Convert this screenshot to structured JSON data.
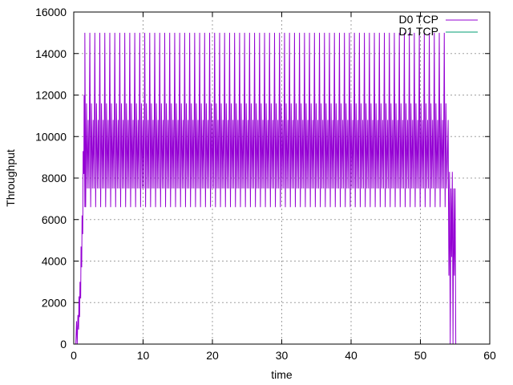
{
  "chart_data": {
    "type": "line",
    "title": "",
    "xlabel": "time",
    "ylabel": "Throughput",
    "xlim": [
      0,
      60
    ],
    "ylim": [
      0,
      16000
    ],
    "x_ticks": [
      "0",
      "10",
      "20",
      "30",
      "40",
      "50",
      "60"
    ],
    "y_ticks": [
      "0",
      "2000",
      "4000",
      "6000",
      "8000",
      "10000",
      "12000",
      "14000",
      "16000"
    ],
    "grid": true,
    "legend_position": "top-right",
    "series": [
      {
        "name": "D0 TCP",
        "color": "#9400d3",
        "style": "oscillating",
        "ramp_up": [
          {
            "x": 0.3,
            "y": 0
          },
          {
            "x": 0.4,
            "y": 1100
          },
          {
            "x": 0.5,
            "y": 0
          },
          {
            "x": 0.6,
            "y": 1400
          },
          {
            "x": 0.7,
            "y": 700
          },
          {
            "x": 0.75,
            "y": 2300
          },
          {
            "x": 0.85,
            "y": 1300
          },
          {
            "x": 0.9,
            "y": 3000
          },
          {
            "x": 1.0,
            "y": 2200
          },
          {
            "x": 1.05,
            "y": 4700
          },
          {
            "x": 1.15,
            "y": 3700
          },
          {
            "x": 1.2,
            "y": 6200
          },
          {
            "x": 1.3,
            "y": 5300
          },
          {
            "x": 1.35,
            "y": 9300
          },
          {
            "x": 1.45,
            "y": 8200
          },
          {
            "x": 1.5,
            "y": 12000
          },
          {
            "x": 1.6,
            "y": 6600
          }
        ],
        "steady_state": {
          "x_start": 1.6,
          "x_end": 53.8,
          "period": 0.24,
          "peaks": [
            15000,
            11600,
            10800
          ],
          "troughs": [
            6600,
            7500,
            7500
          ]
        },
        "ramp_down": [
          {
            "x": 53.8,
            "y": 7500
          },
          {
            "x": 54.0,
            "y": 10800
          },
          {
            "x": 54.1,
            "y": 3300
          },
          {
            "x": 54.2,
            "y": 8300
          },
          {
            "x": 54.3,
            "y": 0
          },
          {
            "x": 54.4,
            "y": 7500
          },
          {
            "x": 54.5,
            "y": 4200
          },
          {
            "x": 54.6,
            "y": 8300
          },
          {
            "x": 54.7,
            "y": 0
          },
          {
            "x": 54.8,
            "y": 7500
          },
          {
            "x": 54.9,
            "y": 3300
          },
          {
            "x": 55.0,
            "y": 7500
          },
          {
            "x": 55.1,
            "y": 0
          }
        ]
      },
      {
        "name": "D1 TCP",
        "color": "#009e73",
        "points": []
      }
    ]
  }
}
